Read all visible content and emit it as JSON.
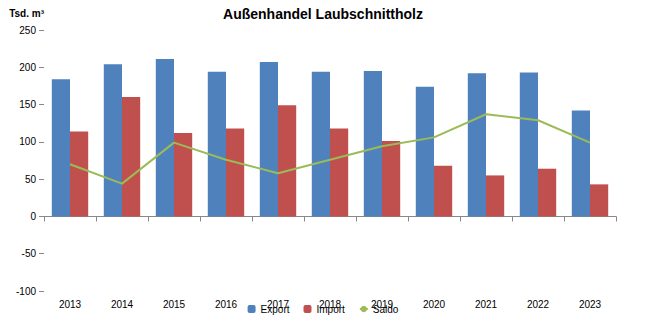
{
  "chart_data": {
    "type": "bar",
    "title": "Außenhandel Laubschnittholz",
    "y_label": "Tsd. m³",
    "categories": [
      "2013",
      "2014",
      "2015",
      "2016",
      "2017",
      "2018",
      "2019",
      "2020",
      "2021",
      "2022",
      "2023"
    ],
    "series": [
      {
        "name": "Export",
        "type": "bar",
        "color": "#4f81bd",
        "values": [
          184,
          204,
          211,
          194,
          207,
          194,
          195,
          174,
          192,
          193,
          142
        ]
      },
      {
        "name": "Import",
        "type": "bar",
        "color": "#c0504d",
        "values": [
          114,
          160,
          112,
          118,
          149,
          118,
          101,
          68,
          55,
          64,
          43
        ]
      },
      {
        "name": "Saldo",
        "type": "line",
        "color": "#9bbb59",
        "values": [
          70,
          44,
          99,
          76,
          58,
          76,
          94,
          106,
          137,
          129,
          99
        ]
      }
    ],
    "ylim": [
      -100,
      250
    ],
    "yticks": [
      -100,
      -50,
      0,
      50,
      100,
      150,
      200,
      250
    ],
    "grid": false,
    "legend": "bottom"
  }
}
